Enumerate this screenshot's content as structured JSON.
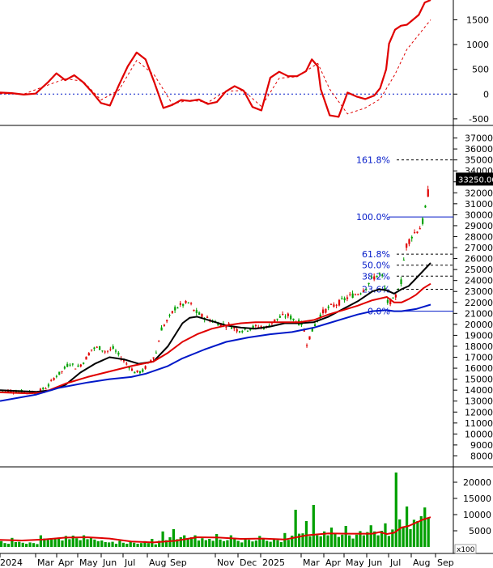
{
  "chart_data": [
    {
      "type": "line",
      "panel": "momentum-oscillator",
      "ylim": [
        -600,
        1900
      ],
      "yticks": [
        -500,
        0,
        500,
        1000,
        1500
      ],
      "tick_labels": [
        "-500",
        "0",
        "500",
        "1000",
        "1500"
      ],
      "reference_line": 0,
      "series": [
        {
          "role": "oscillator",
          "color": "#e00000",
          "x": [
            0,
            4,
            8,
            12,
            16,
            19,
            22,
            25,
            28,
            31,
            34,
            37,
            40,
            43,
            46,
            49,
            52,
            55,
            58,
            61,
            64,
            67,
            70,
            73,
            76,
            79,
            82,
            85,
            88,
            91,
            94,
            97,
            100,
            103,
            105,
            107,
            108,
            111,
            114,
            117,
            120,
            123,
            126,
            128,
            130,
            131,
            133,
            135,
            137,
            139,
            141,
            143,
            145
          ],
          "y": [
            30,
            20,
            -10,
            10,
            230,
            420,
            280,
            380,
            240,
            40,
            -180,
            -230,
            180,
            560,
            840,
            700,
            230,
            -280,
            -220,
            -120,
            -140,
            -110,
            -200,
            -160,
            50,
            160,
            70,
            -260,
            -330,
            330,
            450,
            360,
            360,
            460,
            700,
            560,
            100,
            -430,
            -460,
            30,
            -50,
            -100,
            -30,
            120,
            500,
            1020,
            1300,
            1380,
            1400,
            1500,
            1600,
            1850,
            1900
          ]
        },
        {
          "role": "signal",
          "color": "#e00000",
          "dashed": true,
          "x": [
            0,
            8,
            16,
            22,
            28,
            34,
            40,
            46,
            52,
            58,
            64,
            70,
            76,
            82,
            88,
            94,
            100,
            107,
            111,
            117,
            123,
            128,
            133,
            137,
            141,
            145
          ],
          "y": [
            10,
            0,
            180,
            310,
            260,
            -120,
            80,
            680,
            380,
            -200,
            -120,
            -170,
            60,
            70,
            -250,
            320,
            350,
            620,
            100,
            -400,
            -280,
            -100,
            400,
            900,
            1200,
            1500
          ]
        }
      ]
    },
    {
      "type": "candlestick",
      "panel": "price",
      "ylim": [
        7000,
        38000
      ],
      "yticks": [
        8000,
        9000,
        10000,
        11000,
        12000,
        13000,
        14000,
        15000,
        16000,
        17000,
        18000,
        19000,
        20000,
        21000,
        22000,
        23000,
        24000,
        25000,
        26000,
        27000,
        28000,
        29000,
        30000,
        31000,
        32000,
        33000,
        34000,
        35000,
        36000,
        37000
      ],
      "last_price_label": "33250.00",
      "last_price": 33250,
      "fibonacci": [
        {
          "label": "161.8%",
          "level": 35000
        },
        {
          "label": "100.0%",
          "level": 29800
        },
        {
          "label": "61.8%",
          "level": 26400
        },
        {
          "label": "50.0%",
          "level": 25400
        },
        {
          "label": "38.2%",
          "level": 24400
        },
        {
          "label": "23.6%",
          "level": 23200
        },
        {
          "label": "0.0%",
          "level": 21200
        }
      ],
      "close": [
        {
          "x": 0,
          "y": 14000
        },
        {
          "x": 4,
          "y": 13900
        },
        {
          "x": 8,
          "y": 13800
        },
        {
          "x": 10,
          "y": 13800
        },
        {
          "x": 13,
          "y": 14300
        },
        {
          "x": 15,
          "y": 15200
        },
        {
          "x": 17,
          "y": 15700
        },
        {
          "x": 19,
          "y": 16500
        },
        {
          "x": 21,
          "y": 16000
        },
        {
          "x": 23,
          "y": 16600
        },
        {
          "x": 25,
          "y": 17700
        },
        {
          "x": 27,
          "y": 17900
        },
        {
          "x": 29,
          "y": 17500
        },
        {
          "x": 31,
          "y": 17800
        },
        {
          "x": 33,
          "y": 17000
        },
        {
          "x": 35,
          "y": 16300
        },
        {
          "x": 37,
          "y": 15600
        },
        {
          "x": 39,
          "y": 15700
        },
        {
          "x": 41,
          "y": 16600
        },
        {
          "x": 43,
          "y": 17500
        },
        {
          "x": 44,
          "y": 19500
        },
        {
          "x": 46,
          "y": 20400
        },
        {
          "x": 48,
          "y": 21500
        },
        {
          "x": 50,
          "y": 21800
        },
        {
          "x": 52,
          "y": 22000
        },
        {
          "x": 53,
          "y": 21300
        },
        {
          "x": 55,
          "y": 20800
        },
        {
          "x": 57,
          "y": 20500
        },
        {
          "x": 59,
          "y": 20200
        },
        {
          "x": 61,
          "y": 20000
        },
        {
          "x": 63,
          "y": 19900
        },
        {
          "x": 65,
          "y": 19500
        },
        {
          "x": 67,
          "y": 19500
        },
        {
          "x": 69,
          "y": 19700
        },
        {
          "x": 71,
          "y": 19800
        },
        {
          "x": 73,
          "y": 19700
        },
        {
          "x": 75,
          "y": 20300
        },
        {
          "x": 77,
          "y": 20700
        },
        {
          "x": 79,
          "y": 20800
        },
        {
          "x": 81,
          "y": 20300
        },
        {
          "x": 83,
          "y": 20000
        },
        {
          "x": 84,
          "y": 18200
        },
        {
          "x": 86,
          "y": 19800
        },
        {
          "x": 88,
          "y": 21000
        },
        {
          "x": 90,
          "y": 21500
        },
        {
          "x": 92,
          "y": 21800
        },
        {
          "x": 94,
          "y": 22200
        },
        {
          "x": 96,
          "y": 22600
        },
        {
          "x": 98,
          "y": 22800
        },
        {
          "x": 100,
          "y": 23300
        },
        {
          "x": 102,
          "y": 24200
        },
        {
          "x": 104,
          "y": 24600
        },
        {
          "x": 105,
          "y": 24200
        },
        {
          "x": 106,
          "y": 22000
        },
        {
          "x": 108,
          "y": 22200
        },
        {
          "x": 110,
          "y": 24000
        },
        {
          "x": 111,
          "y": 27000
        },
        {
          "x": 113,
          "y": 28200
        },
        {
          "x": 115,
          "y": 28800
        },
        {
          "x": 116,
          "y": 29500
        },
        {
          "x": 117,
          "y": 31500
        },
        {
          "x": 118,
          "y": 33250
        }
      ],
      "series": [
        {
          "role": "short-ma",
          "color": "#000000",
          "x": [
            0,
            6,
            10,
            14,
            18,
            22,
            26,
            30,
            34,
            38,
            42,
            46,
            50,
            52,
            54,
            58,
            62,
            66,
            70,
            74,
            78,
            82,
            86,
            90,
            94,
            98,
            102,
            104,
            106,
            108,
            110,
            112,
            114,
            116,
            118
          ],
          "y": [
            14000,
            13900,
            13850,
            14000,
            14500,
            15600,
            16400,
            17000,
            16800,
            16400,
            16600,
            18000,
            20100,
            20600,
            20700,
            20300,
            19900,
            19700,
            19600,
            19800,
            20100,
            20100,
            20200,
            20700,
            21400,
            22100,
            23000,
            23200,
            23100,
            22800,
            23200,
            23500,
            24200,
            24900,
            25600
          ]
        },
        {
          "role": "medium-ma",
          "color": "#e00000",
          "x": [
            0,
            8,
            12,
            18,
            24,
            30,
            36,
            42,
            46,
            50,
            54,
            58,
            62,
            66,
            70,
            74,
            78,
            82,
            86,
            90,
            94,
            98,
            102,
            106,
            108,
            110,
            112,
            114,
            116,
            118
          ],
          "y": [
            13800,
            13700,
            13800,
            14600,
            15200,
            15700,
            16200,
            16600,
            17400,
            18400,
            19100,
            19600,
            19900,
            20100,
            20200,
            20200,
            20200,
            20200,
            20400,
            20900,
            21300,
            21700,
            22200,
            22500,
            22000,
            22000,
            22300,
            22700,
            23300,
            23700
          ]
        },
        {
          "role": "long-ma",
          "color": "#0018c8",
          "x": [
            0,
            10,
            16,
            24,
            30,
            36,
            40,
            46,
            50,
            56,
            62,
            68,
            74,
            80,
            86,
            90,
            94,
            98,
            102,
            106,
            108,
            110,
            112,
            114,
            116,
            118
          ],
          "y": [
            13000,
            13600,
            14200,
            14700,
            15000,
            15200,
            15500,
            16200,
            16900,
            17700,
            18400,
            18800,
            19100,
            19300,
            19700,
            20100,
            20500,
            20900,
            21200,
            21300,
            21200,
            21200,
            21300,
            21400,
            21600,
            21800
          ]
        }
      ]
    },
    {
      "type": "bar",
      "panel": "volume",
      "unit": "x100",
      "ylim": [
        0,
        24000
      ],
      "yticks": [
        5000,
        10000,
        15000,
        20000
      ],
      "tick_labels": [
        "5000",
        "10000",
        "15000",
        "20000"
      ],
      "series": [
        {
          "role": "volume",
          "color": "#00a000",
          "values": [
            1800,
            1200,
            1000,
            2800,
            1500,
            1600,
            1300,
            1000,
            1400,
            1200,
            900,
            3600,
            2600,
            2200,
            2400,
            2700,
            2900,
            2000,
            3400,
            2400,
            3500,
            2700,
            2100,
            3600,
            2400,
            3000,
            2300,
            1800,
            2000,
            1500,
            1400,
            1600,
            1000,
            1900,
            1300,
            1000,
            1600,
            1300,
            1000,
            1200,
            1800,
            1200,
            2500,
            800,
            1900,
            4800,
            2100,
            3000,
            5500,
            2400,
            3000,
            3600,
            2600,
            3000,
            3600,
            2000,
            2700,
            2100,
            2500,
            1900,
            4000,
            2300,
            1800,
            2100,
            3600,
            2800,
            1900,
            1400,
            2600,
            2200,
            1700,
            2000,
            3400,
            2400,
            1900,
            1600,
            2500,
            2100,
            1500,
            4300,
            2200,
            3500,
            11500,
            4100,
            4200,
            8000,
            3300,
            13000,
            3600,
            3300,
            4800,
            3600,
            6000,
            4000,
            3100,
            3800,
            6500,
            3600,
            2600,
            3800,
            4900,
            3600,
            4600,
            6700,
            4800,
            3600,
            5000,
            7300,
            3400,
            5400,
            23000,
            8500,
            6100,
            12500,
            5500,
            8400,
            8000,
            9500,
            12200,
            9000
          ]
        },
        {
          "role": "volume-ma",
          "color": "#e00000",
          "x": [
            0,
            6,
            12,
            18,
            24,
            30,
            36,
            42,
            48,
            54,
            60,
            66,
            72,
            78,
            84,
            90,
            96,
            102,
            104,
            106,
            108,
            110,
            112,
            114,
            116,
            118
          ],
          "y": [
            2200,
            2000,
            2300,
            2900,
            3000,
            2600,
            1700,
            1400,
            1900,
            3000,
            2900,
            2500,
            2600,
            2300,
            3600,
            4200,
            4100,
            4100,
            4600,
            4000,
            4400,
            6000,
            6500,
            7500,
            8500,
            9200
          ]
        }
      ]
    }
  ],
  "x_axis_labels": [
    "2024",
    "Mar",
    "Apr",
    "May",
    "Jun",
    "Jul",
    "Aug",
    "Sep",
    "Nov",
    "Dec",
    "2025",
    "Mar",
    "Apr",
    "May",
    "Jun",
    "Jul",
    "Aug",
    "Sep"
  ],
  "volume_unit_label": "x100"
}
